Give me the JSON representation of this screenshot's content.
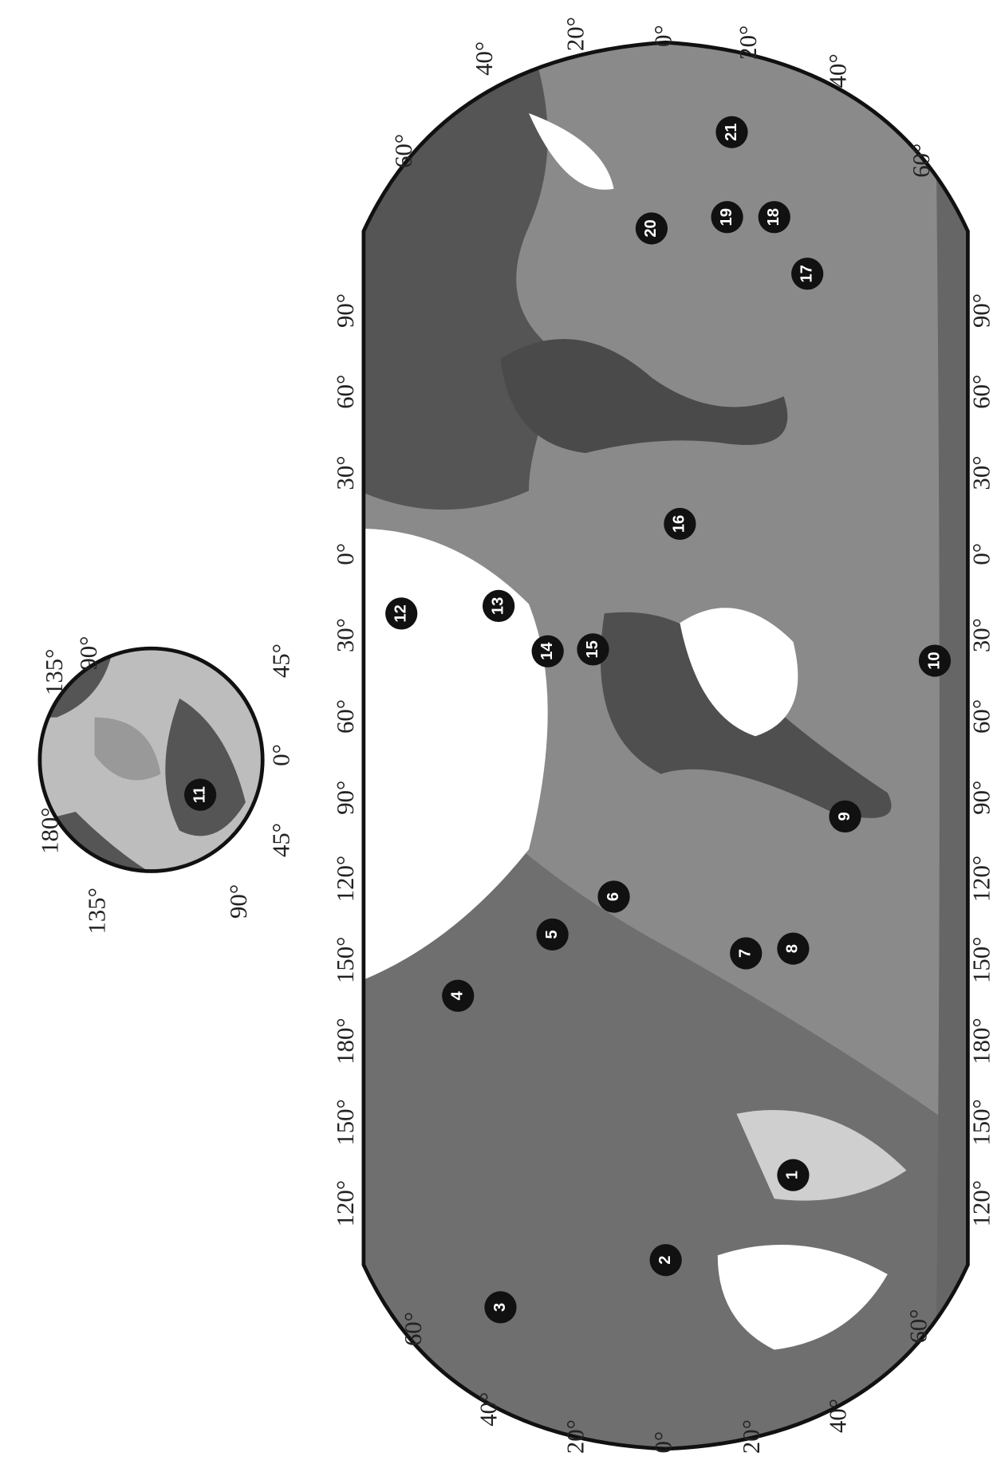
{
  "inset_map": {
    "lon_labels": [
      "135°",
      "90°",
      "45°",
      "0°",
      "45°",
      "90°",
      "135°",
      "180°"
    ],
    "sites": [
      "11"
    ]
  },
  "main_map": {
    "lat_labels_left": [
      "60°",
      "40°",
      "20°",
      "0°",
      "20°",
      "40°",
      "60°"
    ],
    "lat_labels_right": [
      "60°",
      "40°",
      "20°",
      "0°",
      "20°",
      "40°",
      "60°"
    ],
    "lon_labels_top": [
      "120°",
      "150°",
      "180°",
      "150°",
      "120°",
      "90°",
      "60°",
      "30°",
      "0°",
      "30°",
      "60°",
      "90°"
    ],
    "lon_labels_bottom": [
      "120°",
      "150°",
      "180°",
      "150°",
      "120°",
      "90°",
      "60°",
      "30°",
      "0°",
      "30°",
      "60°",
      "90°"
    ],
    "sites": [
      "1",
      "2",
      "3",
      "4",
      "5",
      "6",
      "7",
      "8",
      "9",
      "10",
      "12",
      "13",
      "14",
      "15",
      "16",
      "17",
      "18",
      "19",
      "20",
      "21"
    ]
  }
}
